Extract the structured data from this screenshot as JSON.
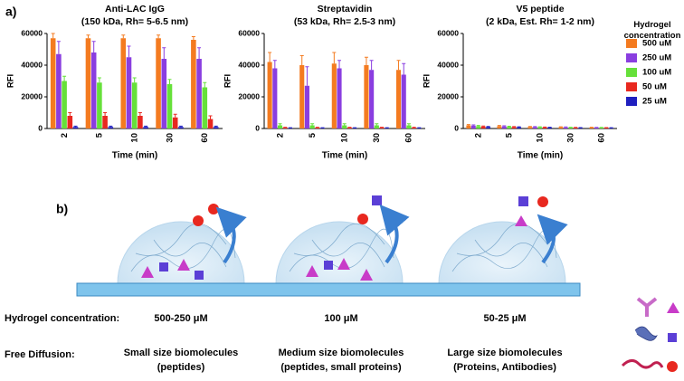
{
  "panel_a_label": "a)",
  "chart_data": [
    {
      "type": "bar",
      "title": "Anti-LAC IgG",
      "subtitle": "(150 kDa, Rh= 5-6.5 nm)",
      "categories": [
        "2",
        "5",
        "10",
        "30",
        "60"
      ],
      "x_label": "Time (min)",
      "y_label": "RFI",
      "ylim": [
        0,
        60000
      ],
      "yticks": [
        0,
        20000,
        40000,
        60000
      ],
      "series": [
        {
          "color": "#f47b20",
          "values": [
            57000,
            57000,
            57000,
            57000,
            56000
          ],
          "errors": [
            3000,
            2000,
            2000,
            2000,
            2000
          ]
        },
        {
          "color": "#8a3ee0",
          "values": [
            47000,
            48000,
            45000,
            44000,
            44000
          ],
          "errors": [
            8000,
            7000,
            7000,
            7000,
            7000
          ]
        },
        {
          "color": "#66e03a",
          "values": [
            30000,
            29000,
            29000,
            28000,
            26000
          ],
          "errors": [
            3000,
            3000,
            3000,
            3000,
            3000
          ]
        },
        {
          "color": "#e8281f",
          "values": [
            8000,
            8000,
            8000,
            7000,
            6000
          ],
          "errors": [
            2000,
            2000,
            2000,
            2000,
            2000
          ]
        },
        {
          "color": "#1f1fbf",
          "values": [
            1000,
            1000,
            1000,
            1000,
            1000
          ],
          "errors": [
            500,
            500,
            500,
            500,
            500
          ]
        }
      ]
    },
    {
      "type": "bar",
      "title": "Streptavidin",
      "subtitle": "(53 kDa, Rh= 2.5-3 nm)",
      "categories": [
        "2",
        "5",
        "10",
        "30",
        "60"
      ],
      "x_label": "Time (min)",
      "y_label": "RFI",
      "ylim": [
        0,
        60000
      ],
      "yticks": [
        0,
        20000,
        40000,
        60000
      ],
      "series": [
        {
          "color": "#f47b20",
          "values": [
            42000,
            40000,
            41000,
            40000,
            37000
          ],
          "errors": [
            6000,
            6000,
            7000,
            5000,
            6000
          ]
        },
        {
          "color": "#8a3ee0",
          "values": [
            38000,
            27000,
            38000,
            37000,
            34000
          ],
          "errors": [
            5000,
            12000,
            5000,
            6000,
            7000
          ]
        },
        {
          "color": "#66e03a",
          "values": [
            2000,
            2000,
            2000,
            2000,
            2000
          ],
          "errors": [
            1000,
            1000,
            1000,
            1000,
            1000
          ]
        },
        {
          "color": "#e8281f",
          "values": [
            500,
            500,
            500,
            500,
            500
          ],
          "errors": [
            300,
            300,
            300,
            300,
            300
          ]
        },
        {
          "color": "#1f1fbf",
          "values": [
            300,
            300,
            300,
            300,
            300
          ],
          "errors": [
            200,
            200,
            200,
            200,
            200
          ]
        }
      ]
    },
    {
      "type": "bar",
      "title": "V5 peptide",
      "subtitle": "(2 kDa, Est. Rh= 1-2 nm)",
      "categories": [
        "2",
        "5",
        "10",
        "30",
        "60"
      ],
      "x_label": "Time (min)",
      "y_label": "RFI",
      "ylim": [
        0,
        60000
      ],
      "yticks": [
        0,
        20000,
        40000,
        60000
      ],
      "legend_title": "Hydrogel concentration",
      "series": [
        {
          "name": "500 uM",
          "color": "#f47b20",
          "values": [
            2000,
            1500,
            1000,
            800,
            600
          ],
          "errors": [
            500,
            400,
            300,
            300,
            200
          ]
        },
        {
          "name": "250 uM",
          "color": "#8a3ee0",
          "values": [
            1800,
            1300,
            900,
            700,
            500
          ],
          "errors": [
            500,
            400,
            300,
            300,
            200
          ]
        },
        {
          "name": "100 uM",
          "color": "#66e03a",
          "values": [
            1500,
            1100,
            800,
            600,
            500
          ],
          "errors": [
            400,
            300,
            300,
            200,
            200
          ]
        },
        {
          "name": "50 uM",
          "color": "#e8281f",
          "values": [
            1200,
            900,
            700,
            500,
            400
          ],
          "errors": [
            400,
            300,
            200,
            200,
            200
          ]
        },
        {
          "name": "25 uM",
          "color": "#1f1fbf",
          "values": [
            1000,
            800,
            600,
            400,
            300
          ],
          "errors": [
            300,
            300,
            200,
            200,
            200
          ]
        }
      ]
    }
  ],
  "diagram": {
    "panel_label": "b)",
    "concentration_label": "Hydrogel concentration:",
    "concentrations": [
      "500-250 μM",
      "100 μM",
      "50-25 μM"
    ],
    "diffusion_label": "Free Diffusion:",
    "diffusion": [
      {
        "line1": "Small size biomolecules",
        "line2": "(peptides)"
      },
      {
        "line1": "Medium size biomolecules",
        "line2": "(peptides, small proteins)"
      },
      {
        "line1": "Large size biomolecules",
        "line2": "(Proteins, Antibodies)"
      }
    ]
  }
}
